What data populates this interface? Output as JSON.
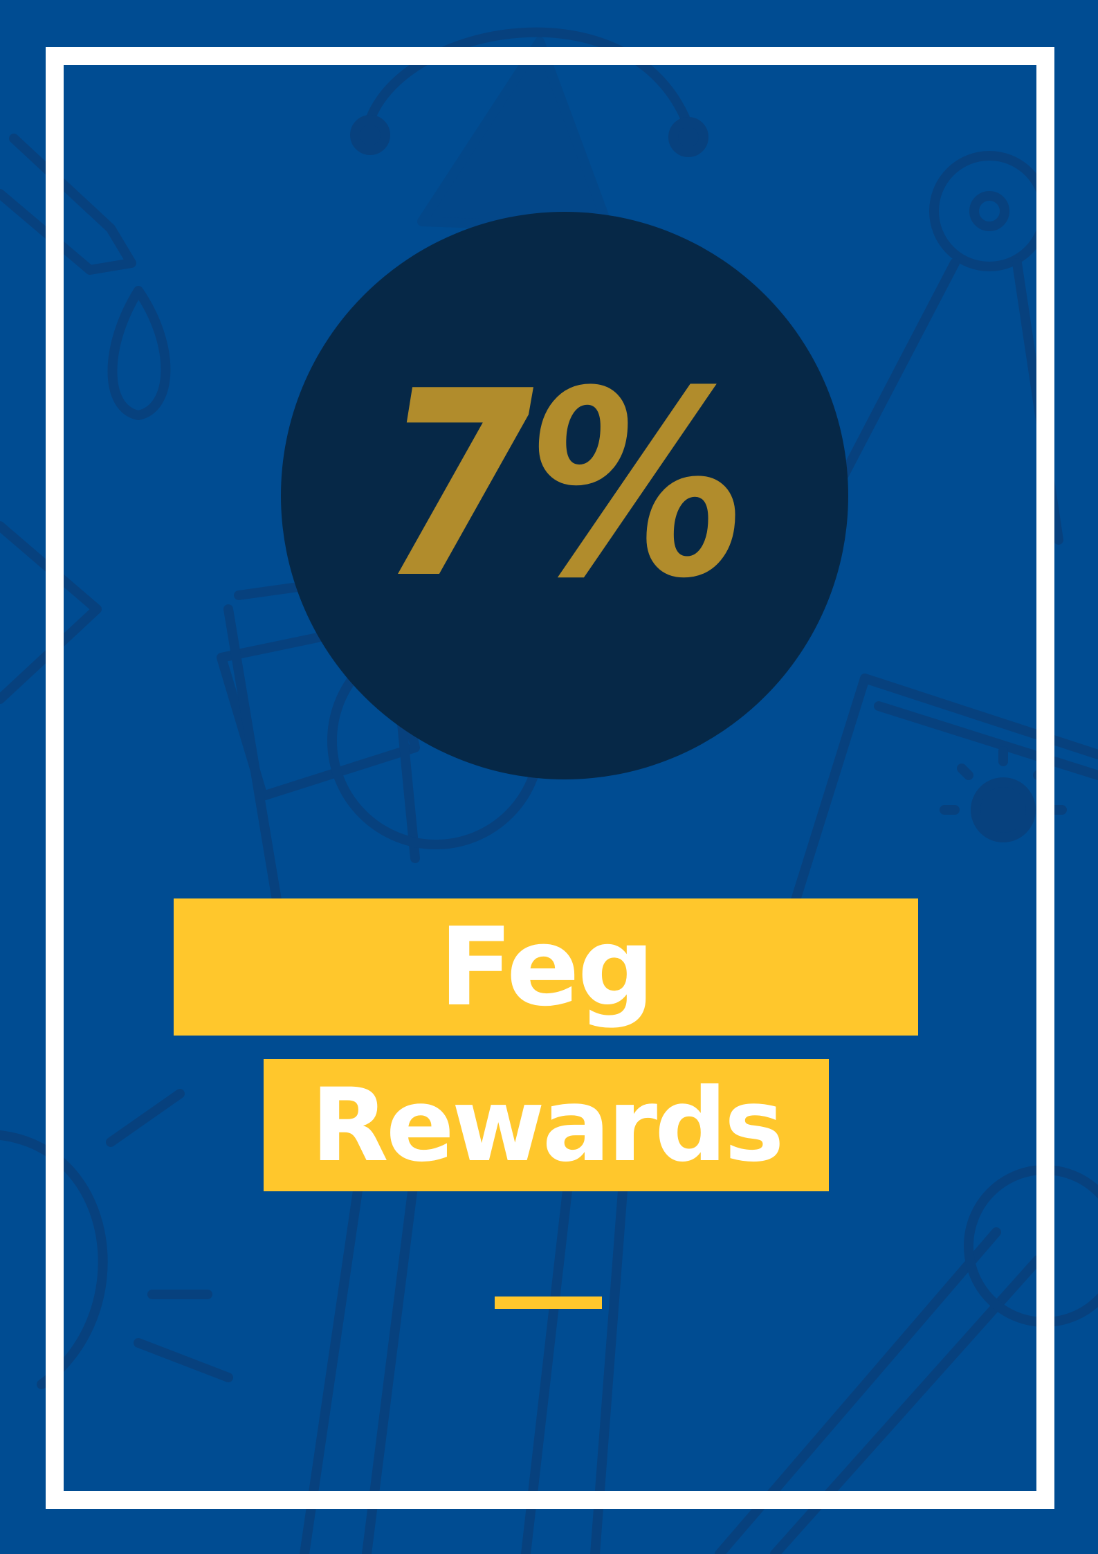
{
  "colors": {
    "background": "#004C92",
    "frame": "#FFFFFF",
    "circle": "#062847",
    "percent_text": "#B18C2C",
    "banner": "#FFC72C",
    "banner_text": "#FFFFFF",
    "pattern_stroke": "#0A3E78"
  },
  "badge": {
    "value": "7%"
  },
  "title": {
    "line1": "Feg",
    "line2": "Rewards"
  },
  "decoration": {
    "background_pattern": "outline-illustration-icons",
    "divider": "yellow-divider"
  }
}
